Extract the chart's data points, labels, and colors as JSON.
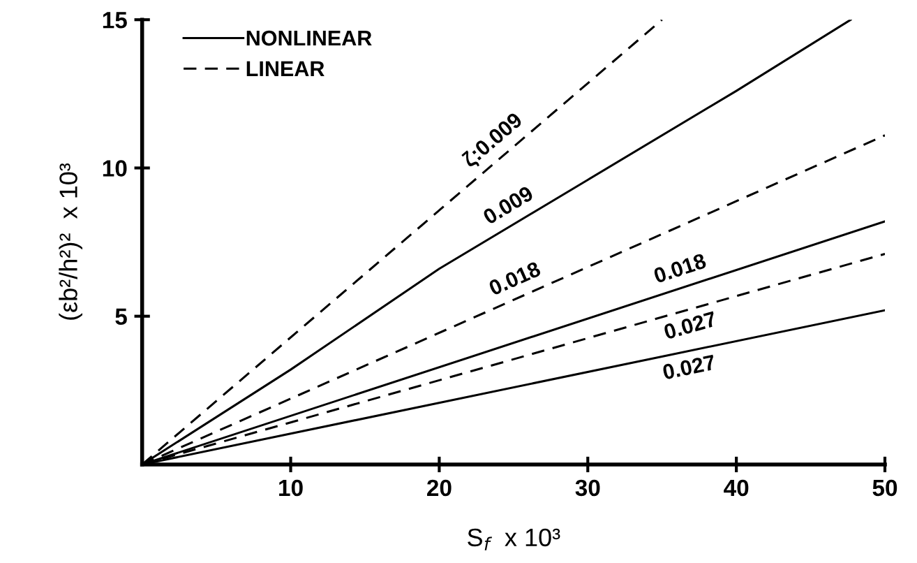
{
  "chart_data": {
    "type": "line",
    "xlabel": "S$_{f}$  x 10³",
    "ylabel": "(εb²/h²)²  x 10³",
    "xlim": [
      0,
      50
    ],
    "ylim": [
      0,
      15
    ],
    "xticks": [
      10,
      20,
      30,
      40,
      50
    ],
    "yticks": [
      5,
      10,
      15
    ],
    "grid": false,
    "legend": "top left",
    "marker": "none",
    "series": [
      {
        "name": "NONLINEAR",
        "color": "#000000",
        "line_style": "solid",
        "x": [
          0,
          10,
          20,
          30,
          40,
          47.7
        ],
        "values": [
          0,
          3.2,
          6.6,
          9.6,
          12.6,
          15.0
        ]
      },
      {
        "name": "LINEAR",
        "color": "#000000",
        "line_style": "dashed",
        "x": [
          0,
          35
        ],
        "values": [
          0,
          15
        ]
      },
      {
        "color": "#000000",
        "line_style": "dashed",
        "x": [
          0,
          50
        ],
        "values": [
          0,
          11.1
        ]
      },
      {
        "color": "#000000",
        "line_style": "solid",
        "x": [
          0,
          50
        ],
        "values": [
          0,
          8.2
        ]
      },
      {
        "color": "#000000",
        "line_style": "dashed",
        "x": [
          0,
          50
        ],
        "values": [
          0,
          7.1
        ]
      },
      {
        "color": "#000000",
        "line_style": "solid",
        "x": [
          0,
          50
        ],
        "values": [
          0,
          5.2
        ]
      }
    ],
    "annotations": [
      {
        "text": "ζ:0.009",
        "x": 24.4,
        "y": 10.46
      },
      {
        "text": "0.009",
        "x": 25.3,
        "y": 8.19
      },
      {
        "text": "0.018",
        "x": 25.6,
        "y": 5.68
      },
      {
        "text": "0.018",
        "x": 36.6,
        "y": 6.0
      },
      {
        "text": "0.027",
        "x": 36.6,
        "y": 5.2
      },
      {
        "text": "0.027",
        "x": 36.6,
        "y": 3.8
      }
    ]
  }
}
